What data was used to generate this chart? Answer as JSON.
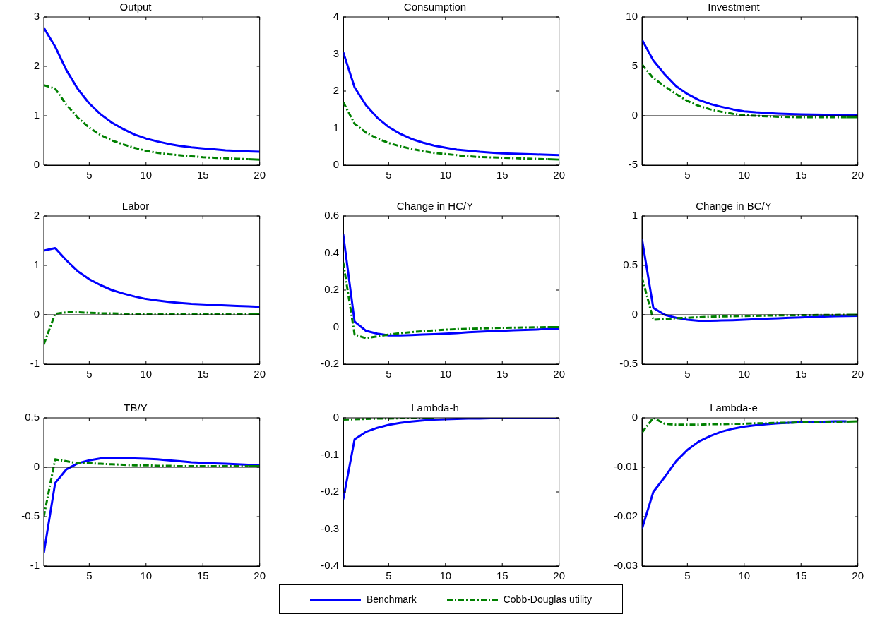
{
  "chart_data": [
    {
      "type": "line",
      "title": "Output",
      "x": [
        1,
        2,
        3,
        4,
        5,
        6,
        7,
        8,
        9,
        10,
        11,
        12,
        13,
        14,
        15,
        16,
        17,
        18,
        19,
        20
      ],
      "xlim": [
        1,
        20
      ],
      "xticks": [
        5,
        10,
        15,
        20
      ],
      "ylim": [
        0,
        3
      ],
      "yticks": [
        0,
        1,
        2,
        3
      ],
      "series": [
        {
          "color": "#0000ff",
          "line_style": "solid",
          "values": [
            2.78,
            2.4,
            1.92,
            1.54,
            1.25,
            1.03,
            0.86,
            0.73,
            0.62,
            0.54,
            0.48,
            0.43,
            0.39,
            0.36,
            0.34,
            0.32,
            0.3,
            0.29,
            0.28,
            0.27
          ]
        },
        {
          "color": "#008000",
          "line_style": "dashed",
          "values": [
            1.62,
            1.55,
            1.22,
            0.96,
            0.76,
            0.61,
            0.5,
            0.42,
            0.35,
            0.29,
            0.25,
            0.22,
            0.2,
            0.18,
            0.16,
            0.15,
            0.14,
            0.13,
            0.12,
            0.11
          ]
        }
      ]
    },
    {
      "type": "line",
      "title": "Consumption",
      "x": [
        1,
        2,
        3,
        4,
        5,
        6,
        7,
        8,
        9,
        10,
        11,
        12,
        13,
        14,
        15,
        16,
        17,
        18,
        19,
        20
      ],
      "xlim": [
        1,
        20
      ],
      "xticks": [
        5,
        10,
        15,
        20
      ],
      "ylim": [
        0,
        4
      ],
      "yticks": [
        0,
        1,
        2,
        3,
        4
      ],
      "series": [
        {
          "color": "#0000ff",
          "line_style": "solid",
          "values": [
            3.05,
            2.1,
            1.62,
            1.28,
            1.03,
            0.85,
            0.71,
            0.61,
            0.53,
            0.47,
            0.42,
            0.39,
            0.36,
            0.34,
            0.32,
            0.31,
            0.3,
            0.29,
            0.28,
            0.27
          ]
        },
        {
          "color": "#008000",
          "line_style": "dashed",
          "values": [
            1.7,
            1.12,
            0.88,
            0.72,
            0.6,
            0.51,
            0.44,
            0.38,
            0.33,
            0.3,
            0.27,
            0.24,
            0.22,
            0.21,
            0.2,
            0.19,
            0.18,
            0.17,
            0.16,
            0.15
          ]
        }
      ]
    },
    {
      "type": "line",
      "title": "Investment",
      "x": [
        1,
        2,
        3,
        4,
        5,
        6,
        7,
        8,
        9,
        10,
        11,
        12,
        13,
        14,
        15,
        16,
        17,
        18,
        19,
        20
      ],
      "xlim": [
        1,
        20
      ],
      "xticks": [
        5,
        10,
        15,
        20
      ],
      "ylim": [
        -5,
        10
      ],
      "yticks": [
        -5,
        0,
        5,
        10
      ],
      "ref_lines": [
        {
          "axis": "y",
          "value": 0,
          "color": "#000000"
        }
      ],
      "series": [
        {
          "color": "#0000ff",
          "line_style": "solid",
          "values": [
            7.7,
            5.6,
            4.2,
            3.0,
            2.2,
            1.6,
            1.2,
            0.9,
            0.65,
            0.45,
            0.35,
            0.28,
            0.22,
            0.18,
            0.15,
            0.13,
            0.11,
            0.1,
            0.09,
            0.08
          ]
        },
        {
          "color": "#008000",
          "line_style": "dashed",
          "values": [
            5.2,
            3.8,
            3.0,
            2.2,
            1.5,
            1.0,
            0.65,
            0.4,
            0.2,
            0.05,
            0,
            -0.05,
            -0.1,
            -0.12,
            -0.15,
            -0.15,
            -0.15,
            -0.15,
            -0.15,
            -0.15
          ]
        }
      ]
    },
    {
      "type": "line",
      "title": "Labor",
      "x": [
        1,
        2,
        3,
        4,
        5,
        6,
        7,
        8,
        9,
        10,
        11,
        12,
        13,
        14,
        15,
        16,
        17,
        18,
        19,
        20
      ],
      "xlim": [
        1,
        20
      ],
      "xticks": [
        5,
        10,
        15,
        20
      ],
      "ylim": [
        -1,
        2
      ],
      "yticks": [
        -1,
        0,
        1,
        2
      ],
      "ref_lines": [
        {
          "axis": "y",
          "value": 0,
          "color": "#000000"
        }
      ],
      "series": [
        {
          "color": "#0000ff",
          "line_style": "solid",
          "values": [
            1.3,
            1.35,
            1.1,
            0.88,
            0.72,
            0.6,
            0.5,
            0.43,
            0.37,
            0.32,
            0.29,
            0.26,
            0.24,
            0.22,
            0.21,
            0.2,
            0.19,
            0.18,
            0.17,
            0.16
          ]
        },
        {
          "color": "#008000",
          "line_style": "dashed",
          "values": [
            -0.6,
            0.02,
            0.05,
            0.05,
            0.04,
            0.03,
            0.03,
            0.02,
            0.02,
            0.02,
            0.01,
            0.01,
            0.01,
            0.01,
            0.01,
            0.01,
            0.01,
            0.01,
            0.01,
            0.01
          ]
        }
      ]
    },
    {
      "type": "line",
      "title": "Change in HC/Y",
      "x": [
        1,
        2,
        3,
        4,
        5,
        6,
        7,
        8,
        9,
        10,
        11,
        12,
        13,
        14,
        15,
        16,
        17,
        18,
        19,
        20
      ],
      "xlim": [
        1,
        20
      ],
      "xticks": [
        5,
        10,
        15,
        20
      ],
      "ylim": [
        -0.2,
        0.6
      ],
      "yticks": [
        -0.2,
        0,
        0.2,
        0.4,
        0.6
      ],
      "ref_lines": [
        {
          "axis": "y",
          "value": 0,
          "color": "#000000"
        }
      ],
      "series": [
        {
          "color": "#0000ff",
          "line_style": "solid",
          "values": [
            0.5,
            0.03,
            -0.02,
            -0.035,
            -0.045,
            -0.045,
            -0.043,
            -0.04,
            -0.038,
            -0.035,
            -0.032,
            -0.028,
            -0.025,
            -0.022,
            -0.02,
            -0.017,
            -0.015,
            -0.013,
            -0.01,
            -0.008
          ]
        },
        {
          "color": "#008000",
          "line_style": "dashed",
          "values": [
            0.35,
            -0.04,
            -0.06,
            -0.05,
            -0.04,
            -0.033,
            -0.027,
            -0.022,
            -0.018,
            -0.014,
            -0.011,
            -0.009,
            -0.007,
            -0.005,
            -0.004,
            -0.003,
            -0.002,
            -0.001,
            0,
            0
          ]
        }
      ]
    },
    {
      "type": "line",
      "title": "Change in BC/Y",
      "x": [
        1,
        2,
        3,
        4,
        5,
        6,
        7,
        8,
        9,
        10,
        11,
        12,
        13,
        14,
        15,
        16,
        17,
        18,
        19,
        20
      ],
      "xlim": [
        1,
        20
      ],
      "xticks": [
        5,
        10,
        15,
        20
      ],
      "ylim": [
        -0.5,
        1
      ],
      "yticks": [
        -0.5,
        0,
        0.5,
        1
      ],
      "ref_lines": [
        {
          "axis": "y",
          "value": 0,
          "color": "#000000"
        }
      ],
      "series": [
        {
          "color": "#0000ff",
          "line_style": "solid",
          "values": [
            0.77,
            0.07,
            0,
            -0.03,
            -0.05,
            -0.06,
            -0.06,
            -0.058,
            -0.055,
            -0.05,
            -0.045,
            -0.04,
            -0.035,
            -0.03,
            -0.026,
            -0.022,
            -0.018,
            -0.015,
            -0.012,
            -0.01
          ]
        },
        {
          "color": "#008000",
          "line_style": "dashed",
          "values": [
            0.38,
            -0.05,
            -0.045,
            -0.035,
            -0.03,
            -0.025,
            -0.02,
            -0.017,
            -0.014,
            -0.012,
            -0.01,
            -0.008,
            -0.006,
            -0.005,
            -0.004,
            -0.003,
            -0.002,
            -0.001,
            0,
            0
          ]
        }
      ]
    },
    {
      "type": "line",
      "title": "TB/Y",
      "x": [
        1,
        2,
        3,
        4,
        5,
        6,
        7,
        8,
        9,
        10,
        11,
        12,
        13,
        14,
        15,
        16,
        17,
        18,
        19,
        20
      ],
      "xlim": [
        1,
        20
      ],
      "xticks": [
        5,
        10,
        15,
        20
      ],
      "ylim": [
        -1,
        0.5
      ],
      "yticks": [
        -1,
        -0.5,
        0,
        0.5
      ],
      "ref_lines": [
        {
          "axis": "y",
          "value": 0,
          "color": "#000000"
        }
      ],
      "series": [
        {
          "color": "#0000ff",
          "line_style": "solid",
          "values": [
            -0.87,
            -0.16,
            -0.02,
            0.04,
            0.07,
            0.09,
            0.095,
            0.095,
            0.09,
            0.085,
            0.08,
            0.07,
            0.06,
            0.05,
            0.045,
            0.04,
            0.035,
            0.03,
            0.025,
            0.02
          ]
        },
        {
          "color": "#008000",
          "line_style": "dashed",
          "values": [
            -0.5,
            0.08,
            0.06,
            0.04,
            0.04,
            0.035,
            0.03,
            0.025,
            0.02,
            0.02,
            0.015,
            0.015,
            0.01,
            0.01,
            0.01,
            0.01,
            0.01,
            0.01,
            0.01,
            0.01
          ]
        }
      ]
    },
    {
      "type": "line",
      "title": "Lambda-h",
      "legend": "bottom",
      "x": [
        1,
        2,
        3,
        4,
        5,
        6,
        7,
        8,
        9,
        10,
        11,
        12,
        13,
        14,
        15,
        16,
        17,
        18,
        19,
        20
      ],
      "xlim": [
        1,
        20
      ],
      "xticks": [
        5,
        10,
        15,
        20
      ],
      "ylim": [
        -0.4,
        0
      ],
      "yticks": [
        -0.4,
        -0.3,
        -0.2,
        -0.1,
        0
      ],
      "series": [
        {
          "name": "Benchmark",
          "color": "#0000ff",
          "line_style": "solid",
          "values": [
            -0.22,
            -0.058,
            -0.038,
            -0.027,
            -0.019,
            -0.014,
            -0.01,
            -0.007,
            -0.005,
            -0.004,
            -0.003,
            -0.002,
            -0.002,
            -0.001,
            -0.001,
            -0.001,
            0,
            0,
            0,
            0
          ]
        },
        {
          "name": "Cobb-Douglas utility",
          "color": "#008000",
          "line_style": "dashed",
          "values": [
            -0.005,
            -0.004,
            -0.003,
            -0.002,
            -0.002,
            -0.001,
            -0.001,
            -0.001,
            0,
            null,
            null,
            null,
            null,
            null,
            null,
            null,
            null,
            null,
            null,
            null
          ]
        }
      ]
    },
    {
      "type": "line",
      "title": "Lambda-e",
      "x": [
        1,
        2,
        3,
        4,
        5,
        6,
        7,
        8,
        9,
        10,
        11,
        12,
        13,
        14,
        15,
        16,
        17,
        18,
        19,
        20
      ],
      "xlim": [
        1,
        20
      ],
      "xticks": [
        5,
        10,
        15,
        20
      ],
      "ylim": [
        -0.03,
        0
      ],
      "yticks": [
        -0.03,
        -0.02,
        -0.01,
        0
      ],
      "series": [
        {
          "color": "#0000ff",
          "line_style": "solid",
          "values": [
            -0.0225,
            -0.015,
            -0.012,
            -0.0088,
            -0.0065,
            -0.0048,
            -0.0037,
            -0.0028,
            -0.0022,
            -0.0018,
            -0.0015,
            -0.0013,
            -0.0011,
            -0.001,
            -0.0009,
            -0.0008,
            -0.0008,
            -0.0007,
            -0.0007,
            null
          ]
        },
        {
          "color": "#008000",
          "line_style": "dashed",
          "values": [
            -0.003,
            0,
            -0.0012,
            -0.0014,
            -0.0014,
            -0.0014,
            -0.0013,
            -0.0013,
            -0.0012,
            -0.0012,
            -0.0011,
            -0.0011,
            -0.001,
            -0.001,
            -0.0009,
            -0.0009,
            -0.0008,
            -0.0008,
            -0.0008,
            -0.0007
          ]
        }
      ]
    }
  ]
}
